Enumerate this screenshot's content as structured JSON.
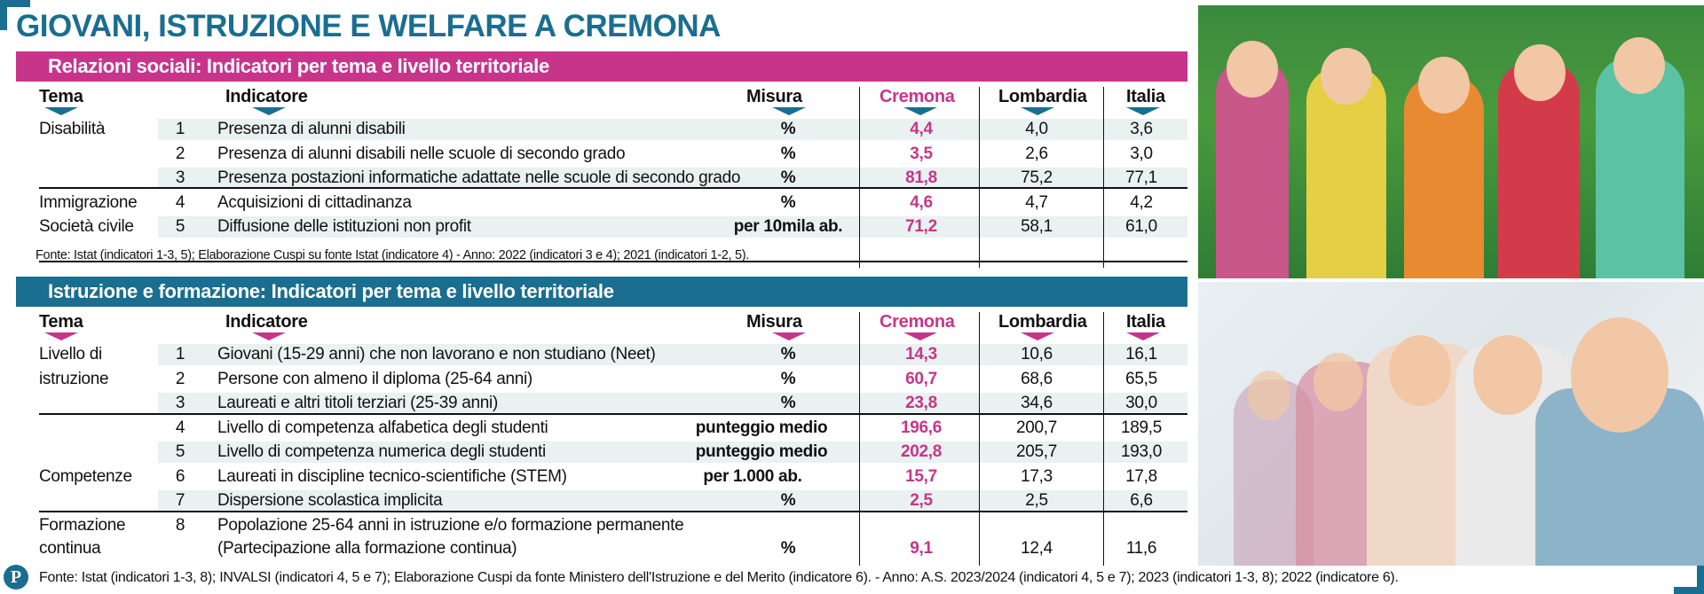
{
  "title": "GIOVANI, ISTRUZIONE E WELFARE A CREMONA",
  "section1": {
    "heading": "Relazioni sociali: Indicatori per tema e livello territoriale",
    "headers": {
      "tema": "Tema",
      "indicatore": "Indicatore",
      "misura": "Misura",
      "cremona": "Cremona",
      "lombardia": "Lombardia",
      "italia": "Italia"
    },
    "rows": [
      {
        "tema": "Disabilità",
        "num": "1",
        "indicatore": "Presenza di alunni disabili",
        "misura": "%",
        "cremona": "4,4",
        "lombardia": "4,0",
        "italia": "3,6"
      },
      {
        "tema": "",
        "num": "2",
        "indicatore": "Presenza di alunni disabili nelle scuole di secondo grado",
        "misura": "%",
        "cremona": "3,5",
        "lombardia": "2,6",
        "italia": "3,0"
      },
      {
        "tema": "",
        "num": "3",
        "indicatore": "Presenza postazioni informatiche adattate nelle scuole di secondo grado",
        "misura": "%",
        "cremona": "81,8",
        "lombardia": "75,2",
        "italia": "77,1"
      },
      {
        "tema": "Immigrazione",
        "num": "4",
        "indicatore": "Acquisizioni di cittadinanza",
        "misura": "%",
        "cremona": "4,6",
        "lombardia": "4,7",
        "italia": "4,2"
      },
      {
        "tema": "Società civile",
        "num": "5",
        "indicatore": "Diffusione delle istituzioni non profit",
        "misura": "per 10mila ab.",
        "cremona": "71,2",
        "lombardia": "58,1",
        "italia": "61,0"
      }
    ],
    "fonte": "Fonte: Istat (indicatori 1-3, 5); Elaborazione Cuspi su fonte Istat (indicatore 4)    -   Anno: 2022 (indicatori 3 e 4); 2021 (indicatori 1-2, 5)."
  },
  "section2": {
    "heading": "Istruzione e formazione: Indicatori per tema e livello territoriale",
    "headers": {
      "tema": "Tema",
      "indicatore": "Indicatore",
      "misura": "Misura",
      "cremona": "Cremona",
      "lombardia": "Lombardia",
      "italia": "Italia"
    },
    "tema_livello_1": "Livello di",
    "tema_livello_2": "istruzione",
    "tema_competenze": "Competenze",
    "tema_formazione_1": "Formazione",
    "tema_formazione_2": "continua",
    "rows": [
      {
        "num": "1",
        "indicatore": "Giovani (15-29 anni) che non lavorano e non studiano (Neet)",
        "misura": "%",
        "cremona": "14,3",
        "lombardia": "10,6",
        "italia": "16,1"
      },
      {
        "num": "2",
        "indicatore": "Persone con almeno il diploma (25-64 anni)",
        "misura": "%",
        "cremona": "60,7",
        "lombardia": "68,6",
        "italia": "65,5"
      },
      {
        "num": "3",
        "indicatore": "Laureati e altri titoli terziari (25-39 anni)",
        "misura": "%",
        "cremona": "23,8",
        "lombardia": "34,6",
        "italia": "30,0"
      },
      {
        "num": "4",
        "indicatore": "Livello di competenza alfabetica degli studenti",
        "misura": "punteggio medio",
        "cremona": "196,6",
        "lombardia": "200,7",
        "italia": "189,5"
      },
      {
        "num": "5",
        "indicatore": "Livello di competenza numerica degli studenti",
        "misura": "punteggio medio",
        "cremona": "202,8",
        "lombardia": "205,7",
        "italia": "193,0"
      },
      {
        "num": "6",
        "indicatore": "Laureati in discipline tecnico-scientifiche (STEM)",
        "misura": "per 1.000 ab.",
        "cremona": "15,7",
        "lombardia": "17,3",
        "italia": "17,8"
      },
      {
        "num": "7",
        "indicatore": "Dispersione scolastica implicita",
        "misura": "%",
        "cremona": "2,5",
        "lombardia": "2,5",
        "italia": "6,6"
      },
      {
        "num": "8",
        "indicatore": "Popolazione 25-64 anni in istruzione e/o formazione permanente",
        "indicatore2": "(Partecipazione alla formazione continua)",
        "misura": "%",
        "cremona": "9,1",
        "lombardia": "12,4",
        "italia": "11,6"
      }
    ],
    "fonte": "Fonte: Istat (indicatori 1-3, 8); INVALSI (indicatori 4, 5 e 7); Elaborazione Cuspi da fonte Ministero dell'Istruzione e del Merito (indicatore 6).  -  Anno: A.S. 2023/2024 (indicatori 4, 5 e 7); 2023 (indicatori 1-3, 8); 2022 (indicatore 6)."
  },
  "logo_letter": "P",
  "colors": {
    "pink": "#c7358a",
    "blue": "#1a6e8f",
    "stripe": "#e9f1f1"
  }
}
